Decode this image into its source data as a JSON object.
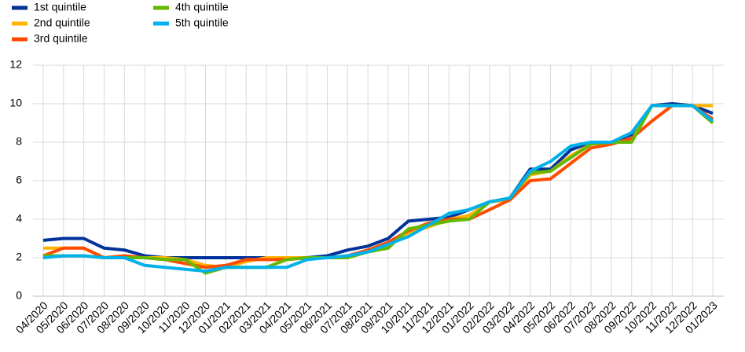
{
  "chart_data": {
    "type": "line",
    "categories": [
      "04/2020",
      "05/2020",
      "06/2020",
      "07/2020",
      "08/2020",
      "09/2020",
      "10/2020",
      "11/2020",
      "12/2020",
      "01/2021",
      "02/2021",
      "03/2021",
      "04/2021",
      "05/2021",
      "06/2021",
      "07/2021",
      "08/2021",
      "09/2021",
      "10/2021",
      "11/2021",
      "12/2021",
      "01/2022",
      "02/2022",
      "03/2022",
      "04/2022",
      "05/2022",
      "06/2022",
      "07/2022",
      "08/2022",
      "09/2022",
      "10/2022",
      "11/2022",
      "12/2022",
      "01/2023"
    ],
    "series": [
      {
        "name": "1st quintile",
        "color": "#003299",
        "values": [
          2.9,
          3.0,
          3.0,
          2.5,
          2.4,
          2.1,
          2.0,
          2.0,
          2.0,
          2.0,
          2.0,
          2.0,
          2.0,
          2.0,
          2.1,
          2.4,
          2.6,
          3.0,
          3.9,
          4.0,
          4.1,
          4.5,
          4.9,
          5.1,
          6.6,
          6.6,
          7.6,
          8.0,
          8.0,
          8.4,
          9.9,
          10.0,
          9.9,
          9.5
        ]
      },
      {
        "name": "2nd quintile",
        "color": "#ffb400",
        "values": [
          2.5,
          2.5,
          2.5,
          2.0,
          2.0,
          2.0,
          2.0,
          1.9,
          1.6,
          1.5,
          1.8,
          2.0,
          2.0,
          2.0,
          2.0,
          2.0,
          2.3,
          2.6,
          3.3,
          3.6,
          4.0,
          4.2,
          4.9,
          5.0,
          6.3,
          6.5,
          7.3,
          7.9,
          8.0,
          8.1,
          9.9,
          9.9,
          9.9,
          9.9
        ]
      },
      {
        "name": "3rd quintile",
        "color": "#ff4b00",
        "values": [
          2.1,
          2.5,
          2.5,
          2.0,
          2.1,
          2.0,
          1.9,
          1.7,
          1.5,
          1.6,
          1.9,
          1.9,
          1.9,
          2.0,
          2.0,
          2.1,
          2.4,
          2.8,
          3.4,
          3.8,
          4.0,
          4.0,
          4.5,
          5.0,
          6.0,
          6.1,
          6.9,
          7.7,
          7.9,
          8.2,
          9.1,
          9.9,
          9.9,
          9.2
        ]
      },
      {
        "name": "4th quintile",
        "color": "#65b800",
        "values": [
          2.1,
          2.1,
          2.1,
          2.0,
          2.0,
          2.0,
          1.9,
          1.9,
          1.2,
          1.5,
          1.5,
          1.5,
          1.9,
          2.0,
          2.0,
          2.0,
          2.3,
          2.5,
          3.5,
          3.7,
          3.9,
          4.0,
          4.9,
          5.1,
          6.4,
          6.5,
          7.2,
          7.9,
          8.0,
          8.0,
          9.9,
          9.9,
          9.9,
          9.0
        ]
      },
      {
        "name": "5th quintile",
        "color": "#00b1ea",
        "values": [
          2.0,
          2.1,
          2.1,
          2.0,
          2.0,
          1.6,
          1.5,
          1.4,
          1.3,
          1.5,
          1.5,
          1.5,
          1.5,
          1.9,
          2.0,
          2.1,
          2.3,
          2.7,
          3.1,
          3.7,
          4.3,
          4.5,
          4.9,
          5.1,
          6.5,
          7.0,
          7.8,
          8.0,
          8.0,
          8.5,
          9.9,
          9.9,
          9.9,
          9.1
        ]
      }
    ],
    "ylim": [
      0,
      12
    ],
    "yticks": [
      0,
      2,
      4,
      6,
      8,
      10,
      12
    ],
    "grid": true,
    "legend": "top-left"
  }
}
